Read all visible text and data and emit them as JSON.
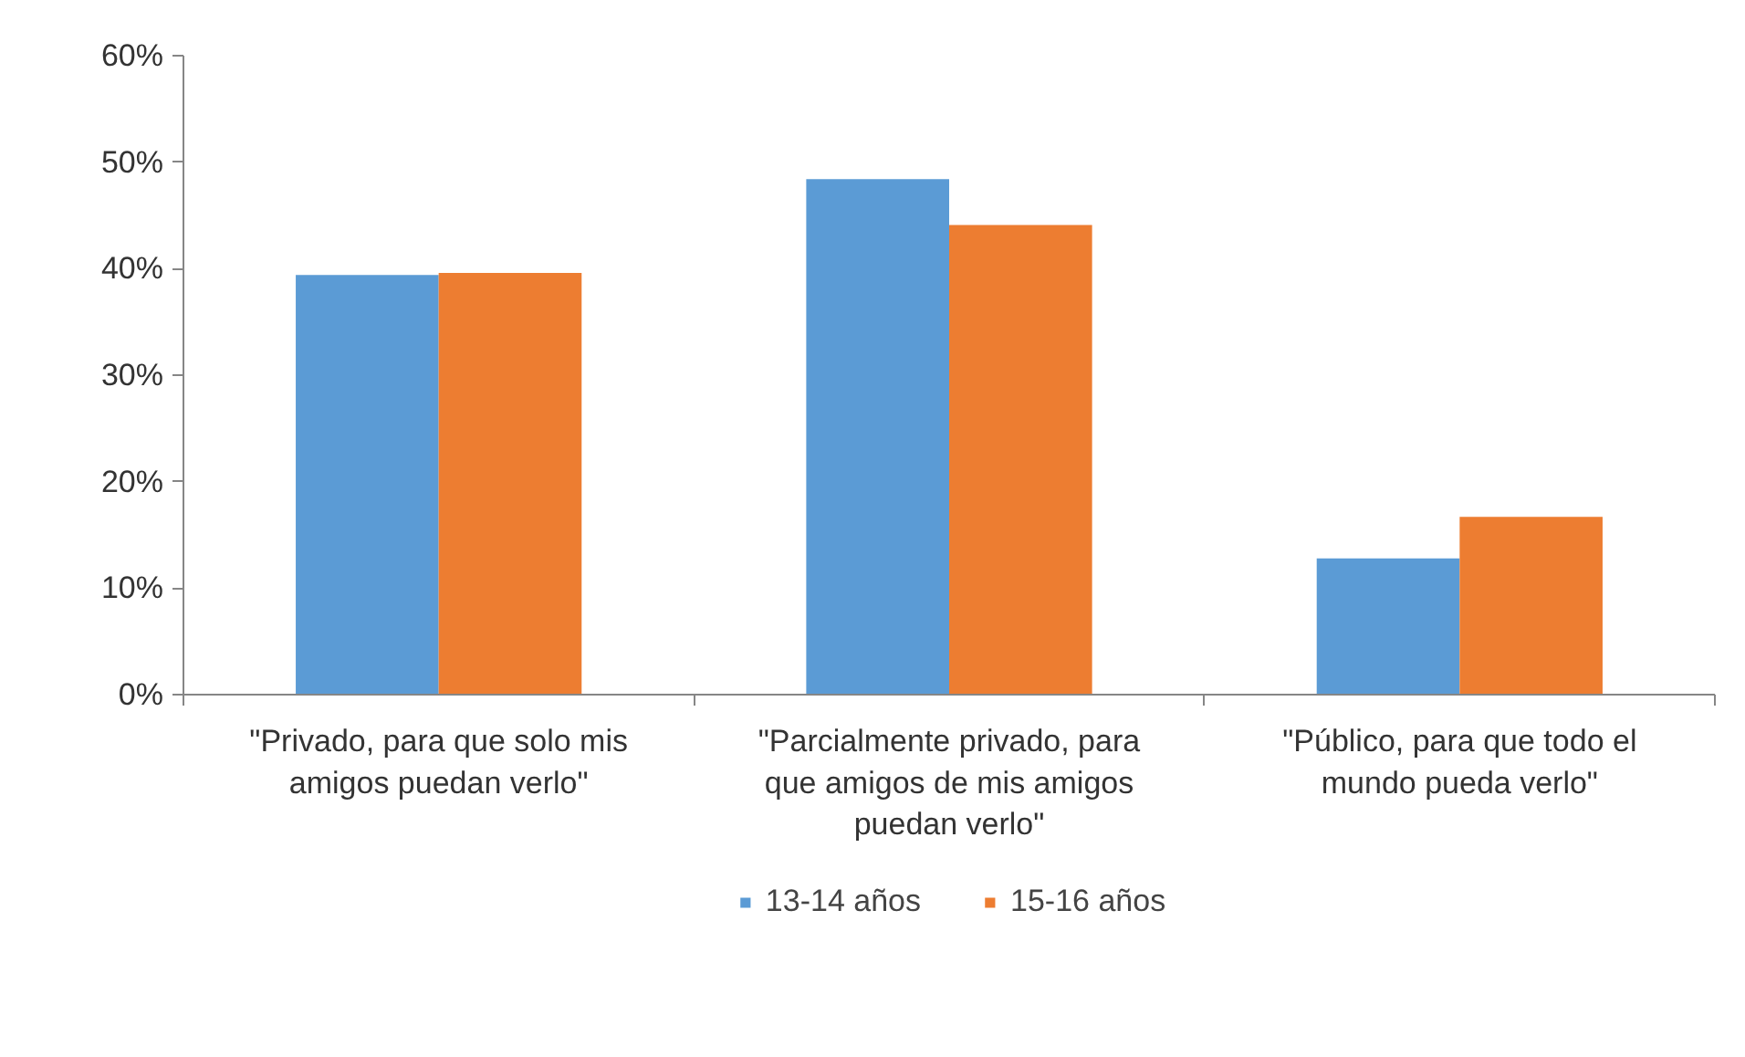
{
  "chart_data": {
    "type": "bar",
    "categories": [
      "\"Privado, para que solo mis amigos puedan verlo\"",
      "\"Parcialmente privado, para que amigos de mis amigos puedan verlo\"",
      "\"Público, para que todo el mundo pueda verlo\""
    ],
    "series": [
      {
        "name": "13-14 años",
        "color": "#5b9bd5",
        "values": [
          39.4,
          48.4,
          12.8
        ]
      },
      {
        "name": "15-16 años",
        "color": "#ed7d31",
        "values": [
          39.6,
          44.1,
          16.7
        ]
      }
    ],
    "ylim": [
      0,
      60
    ],
    "yticks": [
      {
        "value": 0,
        "label": "0%"
      },
      {
        "value": 10,
        "label": "10%"
      },
      {
        "value": 20,
        "label": "20%"
      },
      {
        "value": 30,
        "label": "30%"
      },
      {
        "value": 40,
        "label": "40%"
      },
      {
        "value": 50,
        "label": "50%"
      },
      {
        "value": 60,
        "label": "60%"
      }
    ],
    "grid": false,
    "legend": "bottom"
  }
}
